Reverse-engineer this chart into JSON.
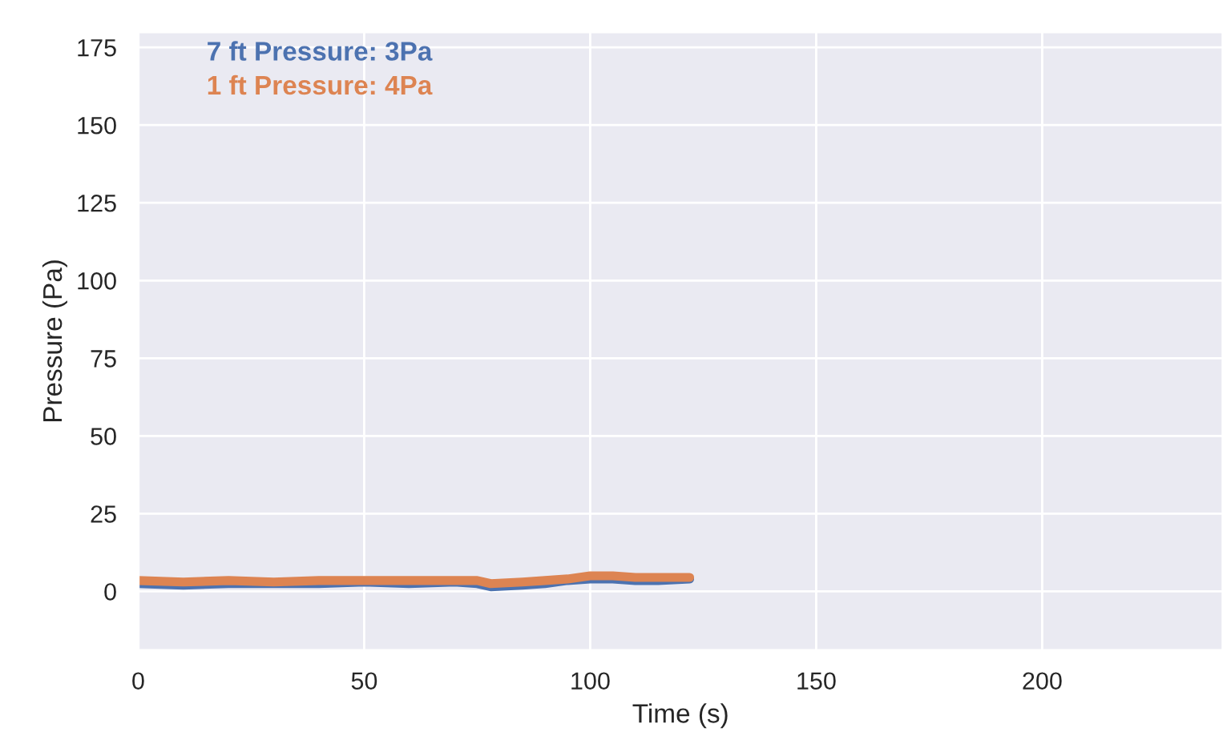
{
  "chart_data": {
    "type": "line",
    "xlabel": "Time (s)",
    "ylabel": "Pressure (Pa)",
    "xlim": [
      0,
      240
    ],
    "xticks": [
      0,
      50,
      100,
      150,
      200
    ],
    "ylim": [
      -19,
      180
    ],
    "yticks": [
      0,
      25,
      50,
      75,
      100,
      125,
      150,
      175
    ],
    "grid": true,
    "legend": false,
    "marker": "none",
    "line_style": "solid",
    "series": [
      {
        "name": "7 ft Pressure: 3Pa",
        "color": "#4c72b0",
        "x": [
          0,
          10,
          20,
          30,
          40,
          50,
          60,
          70,
          75,
          78,
          85,
          90,
          95,
          100,
          105,
          110,
          115,
          122
        ],
        "values": [
          2.5,
          2,
          2.5,
          2.5,
          2.5,
          3,
          2.5,
          3,
          2.5,
          1.5,
          2,
          2.5,
          3.5,
          4,
          4,
          3.5,
          3.5,
          4
        ]
      },
      {
        "name": "1 ft Pressure: 4Pa",
        "color": "#dd8452",
        "x": [
          0,
          10,
          20,
          30,
          40,
          50,
          60,
          70,
          75,
          78,
          85,
          90,
          95,
          100,
          105,
          110,
          115,
          122
        ],
        "values": [
          3.5,
          3,
          3.5,
          3,
          3.5,
          3.5,
          3.5,
          3.5,
          3.5,
          2.5,
          3,
          3.5,
          4,
          5,
          5,
          4.5,
          4.5,
          4.5
        ]
      }
    ]
  }
}
